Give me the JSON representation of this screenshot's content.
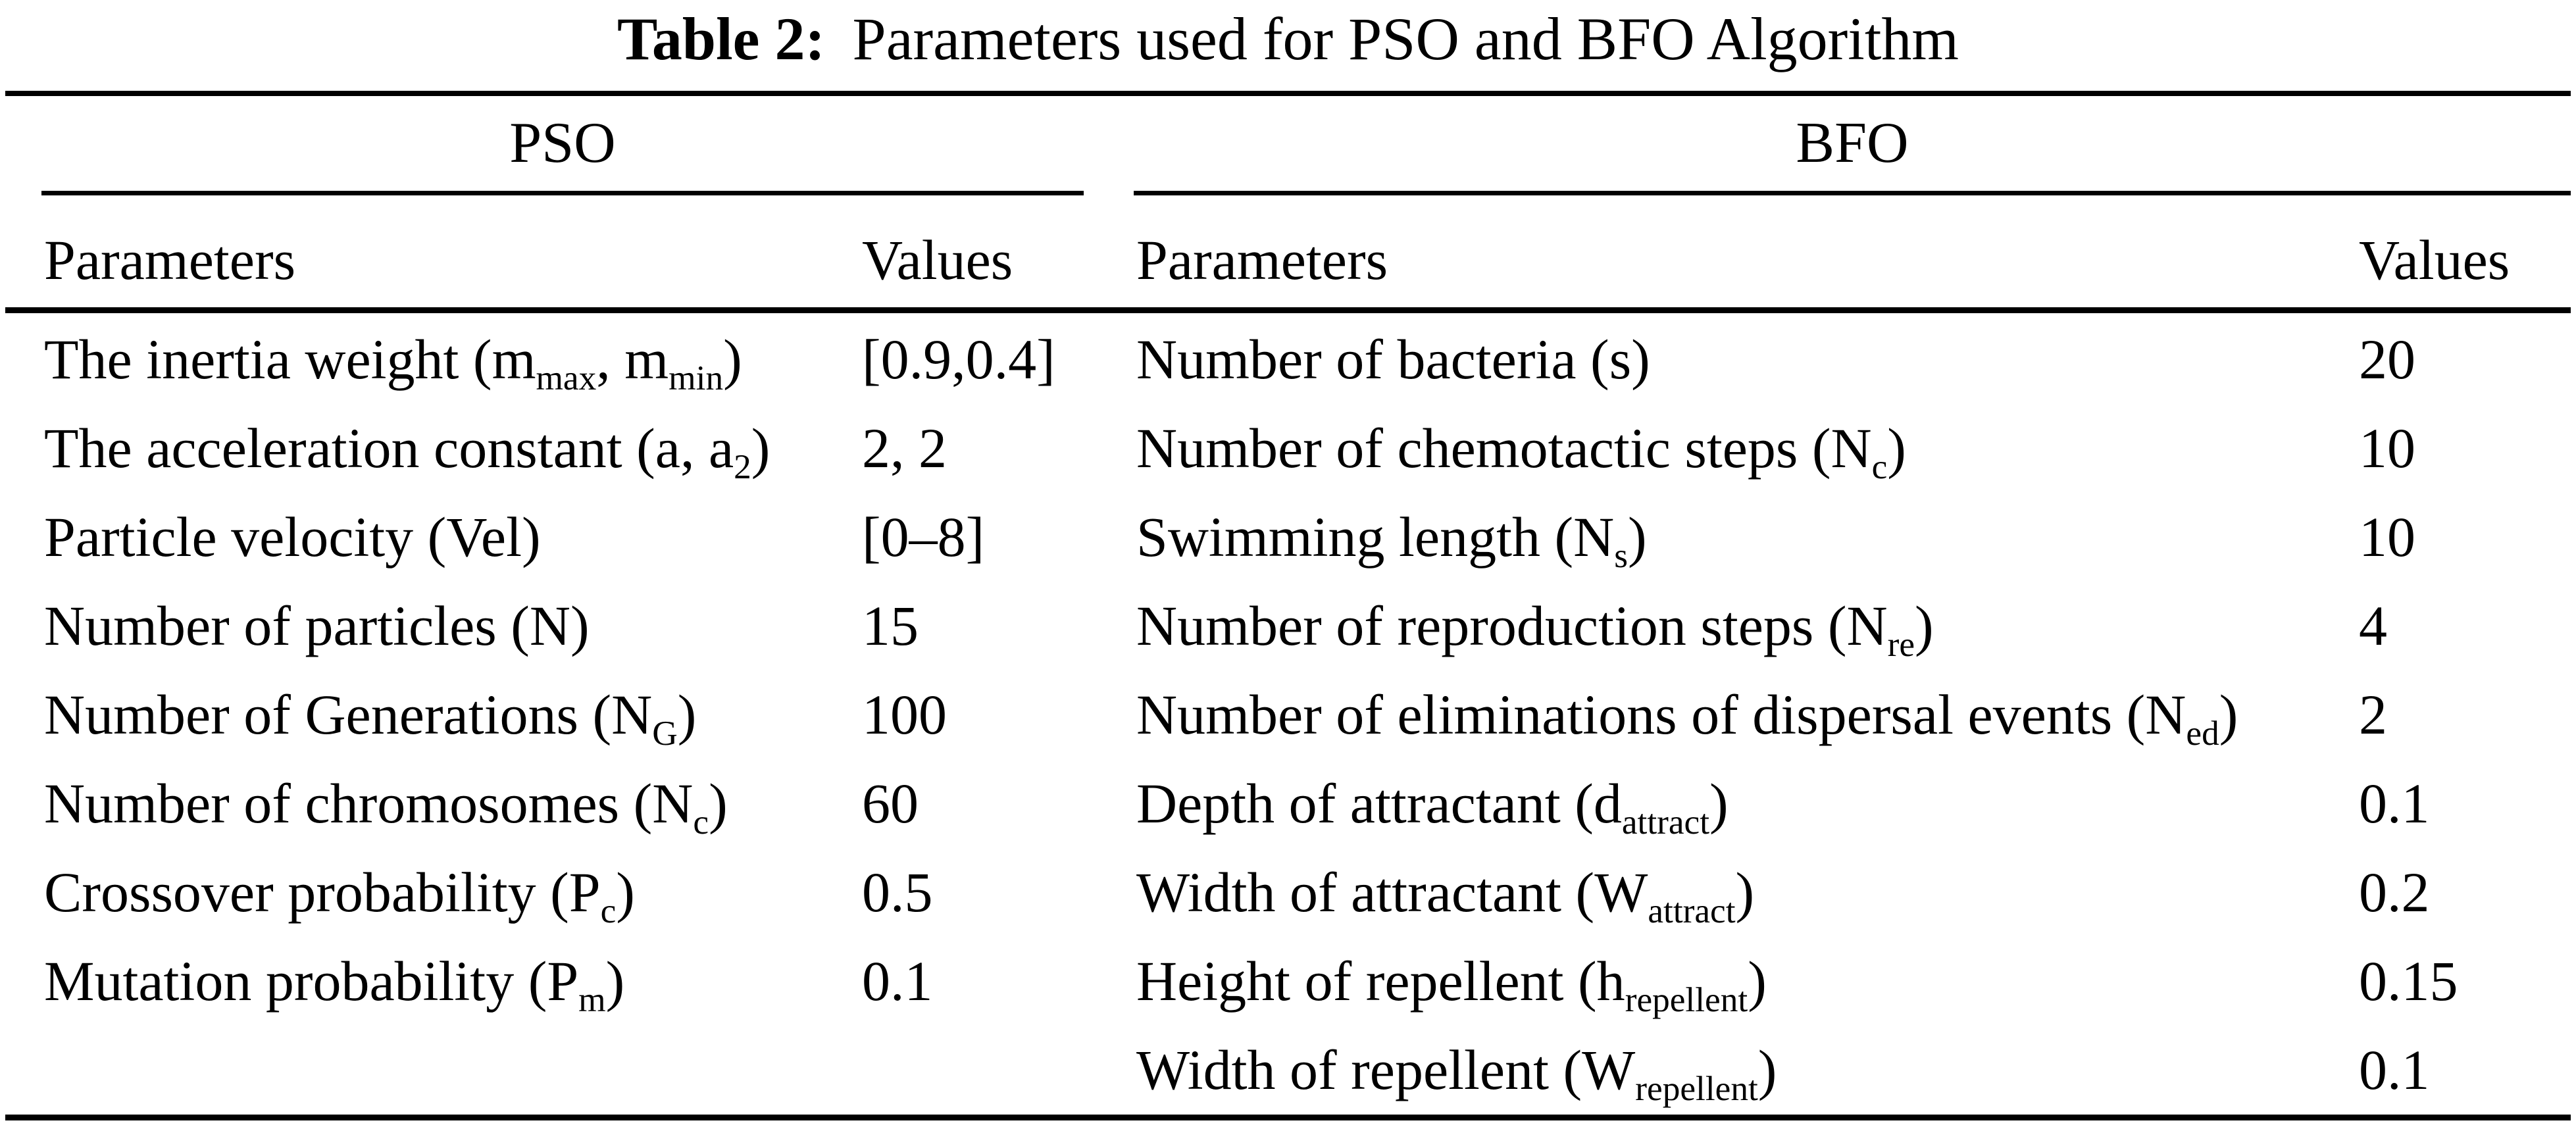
{
  "colors": {
    "background": "#ffffff",
    "text": "#000000",
    "rule": "#000000"
  },
  "caption": {
    "number": "Table 2:",
    "text": "Parameters used for PSO and BFO Algorithm"
  },
  "table": {
    "groups": [
      {
        "name": "PSO",
        "col_headers": [
          "Parameters",
          "Values"
        ],
        "rows": [
          {
            "param": [
              "The inertia weight (m",
              {
                "sub": "max"
              },
              ", m",
              {
                "sub": "min"
              },
              ")"
            ],
            "value": "[0.9,0.4]"
          },
          {
            "param": [
              "The acceleration constant (a, a",
              {
                "sub": "2"
              },
              ")"
            ],
            "value": "2, 2"
          },
          {
            "param": [
              "Particle velocity (Vel)"
            ],
            "value": "[0–8]"
          },
          {
            "param": [
              "Number of particles (N)"
            ],
            "value": "15"
          },
          {
            "param": [
              "Number of Generations (N",
              {
                "sub": "G"
              },
              ")"
            ],
            "value": "100"
          },
          {
            "param": [
              "Number of chromosomes (N",
              {
                "sub": "c"
              },
              ")"
            ],
            "value": "60"
          },
          {
            "param": [
              "Crossover probability (P",
              {
                "sub": "c"
              },
              ")"
            ],
            "value": "0.5"
          },
          {
            "param": [
              "Mutation probability (P",
              {
                "sub": "m"
              },
              ")"
            ],
            "value": "0.1"
          }
        ]
      },
      {
        "name": "BFO",
        "col_headers": [
          "Parameters",
          "Values"
        ],
        "rows": [
          {
            "param": [
              "Number of bacteria (s)"
            ],
            "value": "20"
          },
          {
            "param": [
              "Number of chemotactic steps (N",
              {
                "sub": "c"
              },
              ")"
            ],
            "value": "10"
          },
          {
            "param": [
              "Swimming length (N",
              {
                "sub": "s"
              },
              ")"
            ],
            "value": "10"
          },
          {
            "param": [
              "Number of reproduction steps (N",
              {
                "sub": "re"
              },
              ")"
            ],
            "value": "4"
          },
          {
            "param": [
              "Number of eliminations of dispersal events (N",
              {
                "sub": "ed"
              },
              ")"
            ],
            "value": "2"
          },
          {
            "param": [
              "Depth of attractant (d",
              {
                "sub": "attract"
              },
              ")"
            ],
            "value": "0.1"
          },
          {
            "param": [
              "Width of attractant (W",
              {
                "sub": "attract"
              },
              ")"
            ],
            "value": "0.2"
          },
          {
            "param": [
              "Height of repellent (h",
              {
                "sub": "repellent"
              },
              ")"
            ],
            "value": "0.15"
          },
          {
            "param": [
              "Width of repellent (W",
              {
                "sub": "repellent"
              },
              ")"
            ],
            "value": "0.1"
          }
        ]
      }
    ]
  }
}
